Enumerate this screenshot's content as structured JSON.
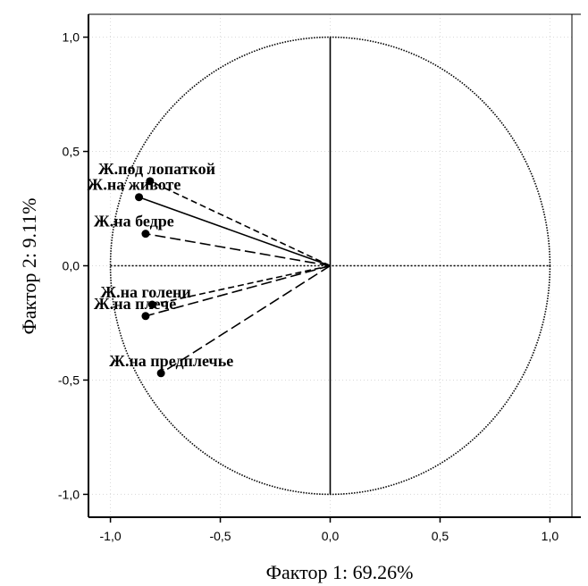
{
  "chart_data": {
    "type": "scatter",
    "subtype": "pca-correlation-circle",
    "title": "",
    "xlabel": "Фактор 1: 69.26%",
    "ylabel": "Фактор 2:  9.11%",
    "xlim": [
      -1.1,
      1.1
    ],
    "ylim": [
      -1.1,
      1.1
    ],
    "x_ticks": [
      -1.0,
      -0.5,
      0.0,
      0.5,
      1.0
    ],
    "y_ticks": [
      -1.0,
      -0.5,
      0.0,
      0.5,
      1.0
    ],
    "x_tick_labels": [
      "-1,0",
      "-0,5",
      "0,0",
      "0,5",
      "1,0"
    ],
    "y_tick_labels": [
      "-1,0",
      "-0,5",
      "0,0",
      "0,5",
      "1,0"
    ],
    "grid": true,
    "unit_circle": true,
    "points": [
      {
        "label": "Ж.под лопаткой",
        "x": -0.82,
        "y": 0.37,
        "line_style": "dashed"
      },
      {
        "label": "Ж.на животе",
        "x": -0.87,
        "y": 0.3,
        "line_style": "solid"
      },
      {
        "label": "Ж.на бедре",
        "x": -0.84,
        "y": 0.14,
        "line_style": "long-dashed"
      },
      {
        "label": "Ж.на голени",
        "x": -0.81,
        "y": -0.17,
        "line_style": "dashed"
      },
      {
        "label": "Ж.на плече",
        "x": -0.84,
        "y": -0.22,
        "line_style": "long-dashed"
      },
      {
        "label": "Ж.на предплечье",
        "x": -0.77,
        "y": -0.47,
        "line_style": "long-dashed"
      }
    ]
  }
}
